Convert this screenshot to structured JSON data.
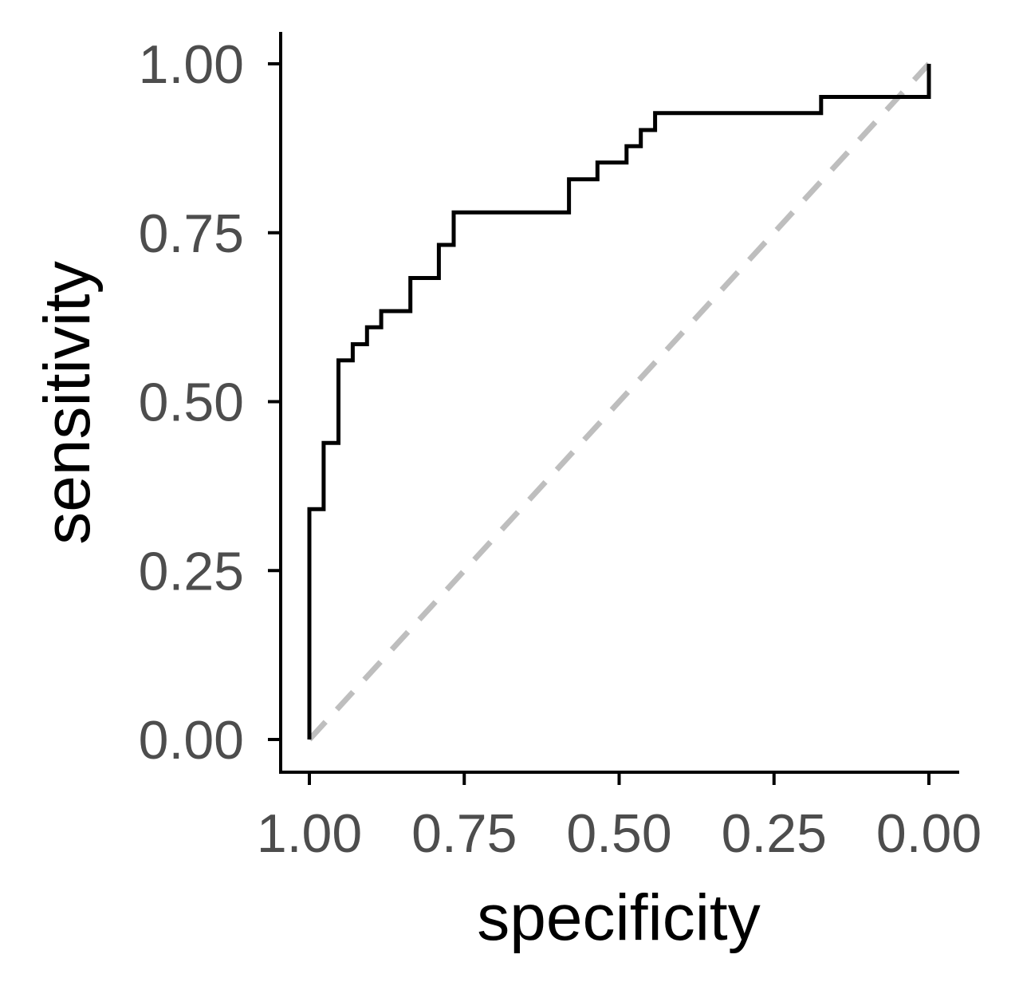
{
  "chart_data": {
    "type": "line",
    "title": "",
    "xlabel": "specificity",
    "ylabel": "sensitivity",
    "x_reversed": true,
    "xlim": [
      1.05,
      -0.05
    ],
    "ylim": [
      -0.05,
      1.05
    ],
    "x_ticks": [
      1.0,
      0.75,
      0.5,
      0.25,
      0.0
    ],
    "x_tick_labels": [
      "1.00",
      "0.75",
      "0.50",
      "0.25",
      "0.00"
    ],
    "y_ticks": [
      0.0,
      0.25,
      0.5,
      0.75,
      1.0
    ],
    "y_tick_labels": [
      "0.00",
      "0.25",
      "0.50",
      "0.75",
      "1.00"
    ],
    "grid": false,
    "series": [
      {
        "style": "step",
        "color": "#000000",
        "x": [
          1.0,
          1.0,
          0.977,
          0.977,
          0.953,
          0.953,
          0.93,
          0.93,
          0.907,
          0.907,
          0.884,
          0.884,
          0.837,
          0.837,
          0.791,
          0.791,
          0.767,
          0.767,
          0.744,
          0.744,
          0.581,
          0.581,
          0.535,
          0.535,
          0.488,
          0.488,
          0.465,
          0.465,
          0.442,
          0.442,
          0.174,
          0.174,
          0.0,
          0.0
        ],
        "y": [
          0.0,
          0.341,
          0.341,
          0.439,
          0.439,
          0.561,
          0.561,
          0.585,
          0.585,
          0.61,
          0.61,
          0.634,
          0.634,
          0.683,
          0.683,
          0.732,
          0.732,
          0.78,
          0.78,
          0.78,
          0.78,
          0.829,
          0.829,
          0.854,
          0.854,
          0.878,
          0.878,
          0.902,
          0.902,
          0.927,
          0.927,
          0.951,
          0.951,
          1.0
        ]
      },
      {
        "style": "dashed",
        "color": "#bebebe",
        "x": [
          1.0,
          0.0
        ],
        "y": [
          0.0,
          1.0
        ]
      }
    ]
  }
}
